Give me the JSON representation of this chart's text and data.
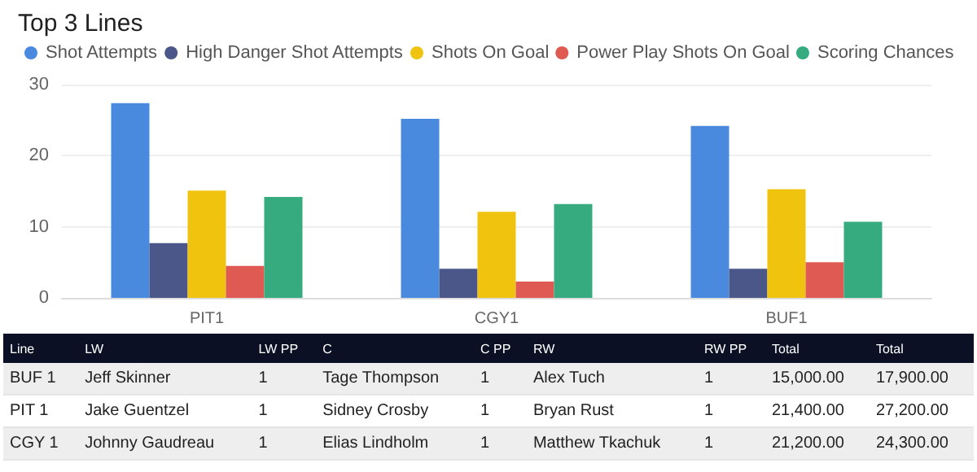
{
  "chart_data": [
    {
      "type": "bar",
      "title": "Top 3 Lines",
      "categories": [
        "PIT1",
        "CGY1",
        "BUF1"
      ],
      "series": [
        {
          "name": "Shot Attempts",
          "color": "#4a8ade",
          "values": [
            27.4,
            25.2,
            24.2
          ]
        },
        {
          "name": "High Danger Shot Attempts",
          "color": "#4a5788",
          "values": [
            7.7,
            4.1,
            4.1
          ]
        },
        {
          "name": "Shots On Goal",
          "color": "#f0c30f",
          "values": [
            15.1,
            12.1,
            15.3
          ]
        },
        {
          "name": "Power Play Shots On Goal",
          "color": "#de5a52",
          "values": [
            4.5,
            2.3,
            5.0
          ]
        },
        {
          "name": "Scoring Chances",
          "color": "#36ab80",
          "values": [
            14.2,
            13.2,
            10.7
          ]
        }
      ],
      "ylim": [
        0,
        30
      ],
      "yticks": [
        0,
        10,
        20,
        30
      ],
      "grid": "y",
      "legend": "top left"
    },
    {
      "type": "other",
      "annotations": [
        "Line",
        "LW",
        "LW PP",
        "C",
        "C PP",
        "RW",
        "RW PP",
        "Total",
        "Total",
        "BUF 1",
        "Jeff Skinner",
        "1",
        "Tage Thompson",
        "1",
        "Alex Tuch",
        "1",
        "15,000.00",
        "17,900.00",
        "PIT 1",
        "Jake Guentzel",
        "1",
        "Sidney Crosby",
        "1",
        "Bryan Rust",
        "1",
        "21,400.00",
        "27,200.00",
        "CGY 1",
        "Johnny Gaudreau",
        "1",
        "Elias Lindholm",
        "1",
        "Matthew Tkachuk",
        "1",
        "21,200.00",
        "24,300.00"
      ]
    }
  ]
}
